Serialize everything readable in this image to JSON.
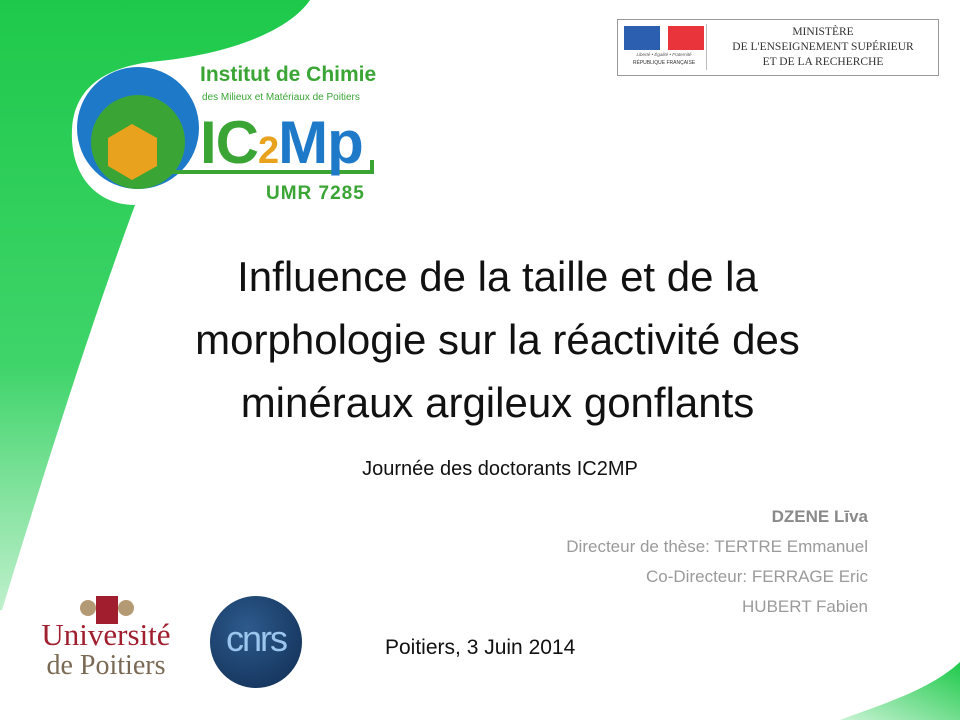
{
  "colors": {
    "green": "#1ec94a",
    "logo_blue": "#1e7ac8",
    "logo_green": "#3aa535",
    "logo_orange": "#e8a21e",
    "univ_red": "#a01e2e",
    "cnrs_blue": "#0f2c52"
  },
  "logo": {
    "institute": "Institut de Chimie",
    "institute_sub": "des Milieux et Matériaux de Poitiers",
    "ic": "IC",
    "two": "2",
    "mp": "Mp",
    "umr": "UMR 7285"
  },
  "ministry": {
    "line1": "MINISTÈRE",
    "line2": "DE L'ENSEIGNEMENT SUPÉRIEUR",
    "line3": "ET DE LA RECHERCHE",
    "motto": "Liberté • Égalité • Fraternité",
    "republic": "RÉPUBLIQUE FRANÇAISE"
  },
  "slide": {
    "title_lines": [
      "Influence de la taille et de la",
      "morphologie sur la réactivité des",
      "minéraux argileux gonflants"
    ],
    "subtitle": "Journée des doctorants IC2MP",
    "authors": [
      "DZENE Līva",
      "Directeur de thèse: TERTRE Emmanuel",
      "Co-Directeur: FERRAGE Eric",
      "HUBERT Fabien"
    ],
    "date": "Poitiers,  3 Juin 2014"
  },
  "footer_logos": {
    "univ_line1": "Université",
    "univ_line2": "de Poitiers",
    "cnrs": "cnrs"
  }
}
